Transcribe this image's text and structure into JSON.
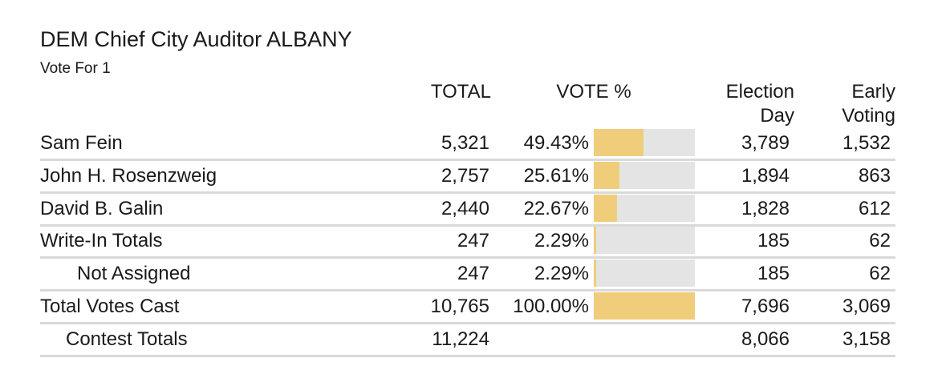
{
  "contest": {
    "title": "DEM Chief City Auditor ALBANY",
    "subtitle": "Vote For 1"
  },
  "headers": {
    "total": "TOTAL",
    "vote_pct": "VOTE %",
    "election_day_line1": "Election",
    "election_day_line2": "Day",
    "early_voting_line1": "Early",
    "early_voting_line2": "Voting"
  },
  "bar_colors": {
    "fill": "#f0cd7a",
    "track": "#e4e4e4"
  },
  "rows": [
    {
      "name": "Sam Fein",
      "total": "5,321",
      "pct": "49.43%",
      "pct_value": 49.43,
      "election_day": "3,789",
      "early_voting": "1,532"
    },
    {
      "name": "John H. Rosenzweig",
      "total": "2,757",
      "pct": "25.61%",
      "pct_value": 25.61,
      "election_day": "1,894",
      "early_voting": "863"
    },
    {
      "name": "David B. Galin",
      "total": "2,440",
      "pct": "22.67%",
      "pct_value": 22.67,
      "election_day": "1,828",
      "early_voting": "612"
    },
    {
      "name": "Write-In Totals",
      "total": "247",
      "pct": "2.29%",
      "pct_value": 2.29,
      "election_day": "185",
      "early_voting": "62"
    },
    {
      "name": "Not Assigned",
      "total": "247",
      "pct": "2.29%",
      "pct_value": 2.29,
      "election_day": "185",
      "early_voting": "62"
    },
    {
      "name": "Total Votes Cast",
      "total": "10,765",
      "pct": "100.00%",
      "pct_value": 100.0,
      "election_day": "7,696",
      "early_voting": "3,069"
    },
    {
      "name": "Contest Totals",
      "total": "11,224",
      "pct": "",
      "pct_value": null,
      "election_day": "8,066",
      "early_voting": "3,158"
    }
  ]
}
